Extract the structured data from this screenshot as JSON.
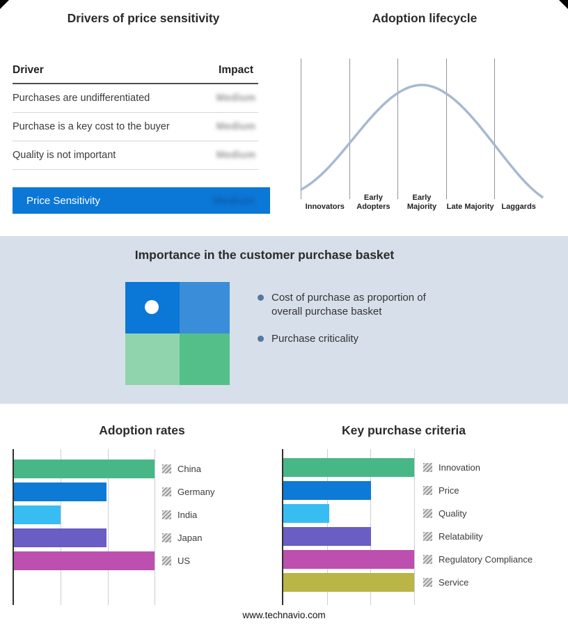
{
  "page": {
    "footer_url": "www.technavio.com"
  },
  "drivers_panel": {
    "title": "Drivers of price sensitivity",
    "columns": {
      "driver": "Driver",
      "impact": "Impact"
    },
    "rows": [
      {
        "driver": "Purchases are undifferentiated",
        "impact": "Medium"
      },
      {
        "driver": "Purchase is a key cost to the buyer",
        "impact": "Medium"
      },
      {
        "driver": "Quality is not important",
        "impact": "Medium"
      }
    ],
    "summary": {
      "label": "Price Sensitivity",
      "impact": "Medium"
    },
    "accent_color": "#0b77d6"
  },
  "basket_panel": {
    "title": "Importance in the customer purchase basket",
    "bullets": [
      "Cost of purchase as proportion of overall purchase basket",
      "Purchase criticality"
    ],
    "band_bg": "#d7e0ea",
    "quadrant_colors": {
      "top_left": "#0b77d6",
      "top_right": "#3a8ed9",
      "bottom_left": "#90d4ae",
      "bottom_right": "#55bf89"
    }
  },
  "chart_data": [
    {
      "name": "adoption-lifecycle",
      "type": "line",
      "title": "Adoption lifecycle",
      "shape": "bell-curve",
      "categories": [
        "Innovators",
        "Early Adopters",
        "Early Majority",
        "Late Majority",
        "Laggards"
      ],
      "peak_category": "Early Majority",
      "line_color": "#a7b9d1",
      "grid": true
    },
    {
      "name": "adoption-rates",
      "type": "bar",
      "orientation": "horizontal",
      "title": "Adoption rates",
      "categories": [
        "China",
        "Germany",
        "India",
        "Japan",
        "US"
      ],
      "values": [
        100,
        66,
        33,
        66,
        100
      ],
      "colors": [
        "#48b787",
        "#0d7ad5",
        "#38bdf3",
        "#6a5dc3",
        "#bd4fae"
      ],
      "xlim": [
        0,
        100
      ],
      "grid": true,
      "legend_position": "right"
    },
    {
      "name": "key-purchase-criteria",
      "type": "bar",
      "orientation": "horizontal",
      "title": "Key purchase criteria",
      "categories": [
        "Innovation",
        "Price",
        "Quality",
        "Relatability",
        "Regulatory Compliance",
        "Service"
      ],
      "values": [
        100,
        67,
        35,
        67,
        100,
        100
      ],
      "colors": [
        "#48b787",
        "#0d7ad5",
        "#38bdf3",
        "#6a5dc3",
        "#bd4fae",
        "#b9b546"
      ],
      "xlim": [
        0,
        100
      ],
      "grid": true,
      "legend_position": "right"
    }
  ]
}
